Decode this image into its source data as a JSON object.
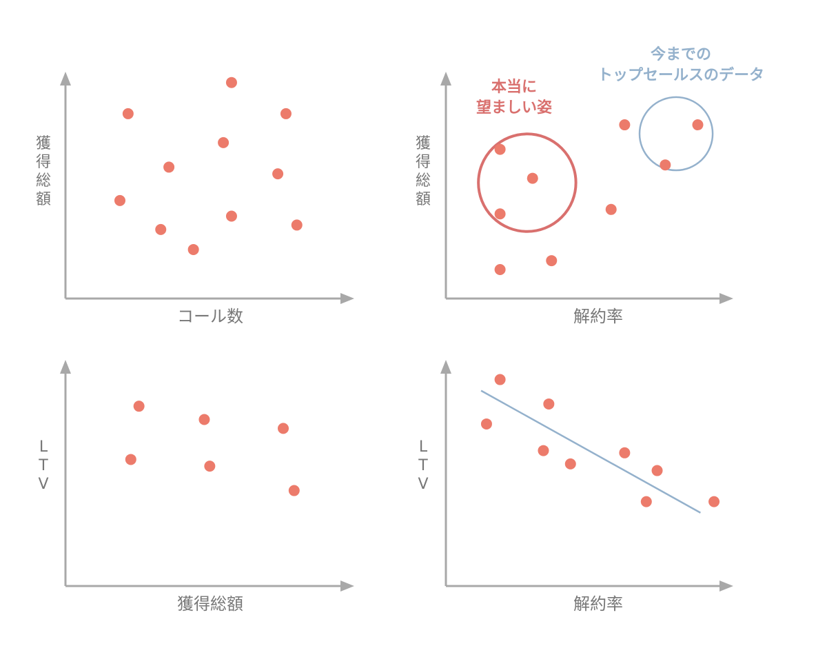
{
  "colors": {
    "point": "#ec7b6b",
    "axis": "#a8a8a8",
    "label": "#777777",
    "highlight_red": "#d9706e",
    "highlight_blue": "#94b1cc",
    "trend_line": "#94b1cc"
  },
  "chart_data": [
    {
      "type": "scatter",
      "xlabel": "コール数",
      "ylabel": "獲得総額",
      "grid": false,
      "xlim": [
        0,
        10
      ],
      "ylim": [
        0,
        10
      ],
      "points": [
        {
          "x": 2.3,
          "y": 8.3
        },
        {
          "x": 6.1,
          "y": 9.7
        },
        {
          "x": 8.1,
          "y": 8.3
        },
        {
          "x": 5.8,
          "y": 7.0
        },
        {
          "x": 3.8,
          "y": 5.9
        },
        {
          "x": 7.8,
          "y": 5.6
        },
        {
          "x": 2.0,
          "y": 4.4
        },
        {
          "x": 3.5,
          "y": 3.1
        },
        {
          "x": 6.1,
          "y": 3.7
        },
        {
          "x": 8.5,
          "y": 3.3
        },
        {
          "x": 4.7,
          "y": 2.2
        }
      ]
    },
    {
      "type": "scatter",
      "xlabel": "解約率",
      "ylabel": "獲得総額",
      "grid": false,
      "xlim": [
        0,
        10
      ],
      "ylim": [
        0,
        10
      ],
      "points": [
        {
          "x": 2.0,
          "y": 6.7
        },
        {
          "x": 3.2,
          "y": 5.4
        },
        {
          "x": 2.0,
          "y": 3.8
        },
        {
          "x": 2.0,
          "y": 1.3
        },
        {
          "x": 3.9,
          "y": 1.7
        },
        {
          "x": 6.1,
          "y": 4.0
        },
        {
          "x": 6.6,
          "y": 7.8
        },
        {
          "x": 9.3,
          "y": 7.8
        },
        {
          "x": 8.1,
          "y": 6.0
        }
      ],
      "annotations": [
        {
          "text_lines": [
            "本当に",
            "望ましい姿"
          ],
          "center": {
            "x": 3.0,
            "y": 5.2
          },
          "radius_x": 1.8,
          "color_key": "highlight_red"
        },
        {
          "text_lines": [
            "今までの",
            "トップセールスのデータ"
          ],
          "center": {
            "x": 8.5,
            "y": 7.4
          },
          "radius_x": 1.35,
          "color_key": "highlight_blue"
        }
      ]
    },
    {
      "type": "scatter",
      "xlabel": "獲得総額",
      "ylabel": "LTV",
      "grid": false,
      "xlim": [
        0,
        10
      ],
      "ylim": [
        0,
        10
      ],
      "points": [
        {
          "x": 2.7,
          "y": 8.1
        },
        {
          "x": 5.1,
          "y": 7.5
        },
        {
          "x": 8.0,
          "y": 7.1
        },
        {
          "x": 2.4,
          "y": 5.7
        },
        {
          "x": 5.3,
          "y": 5.4
        },
        {
          "x": 8.4,
          "y": 4.3
        }
      ]
    },
    {
      "type": "scatter",
      "xlabel": "解約率",
      "ylabel": "LTV",
      "grid": false,
      "xlim": [
        0,
        10
      ],
      "ylim": [
        0,
        10
      ],
      "points": [
        {
          "x": 2.0,
          "y": 9.3
        },
        {
          "x": 3.8,
          "y": 8.2
        },
        {
          "x": 1.5,
          "y": 7.3
        },
        {
          "x": 3.6,
          "y": 6.1
        },
        {
          "x": 4.6,
          "y": 5.5
        },
        {
          "x": 6.6,
          "y": 6.0
        },
        {
          "x": 7.8,
          "y": 5.2
        },
        {
          "x": 7.4,
          "y": 3.8
        },
        {
          "x": 9.9,
          "y": 3.8
        }
      ],
      "trend_line": {
        "from": {
          "x": 1.3,
          "y": 8.8
        },
        "to": {
          "x": 9.4,
          "y": 3.3
        }
      }
    }
  ]
}
